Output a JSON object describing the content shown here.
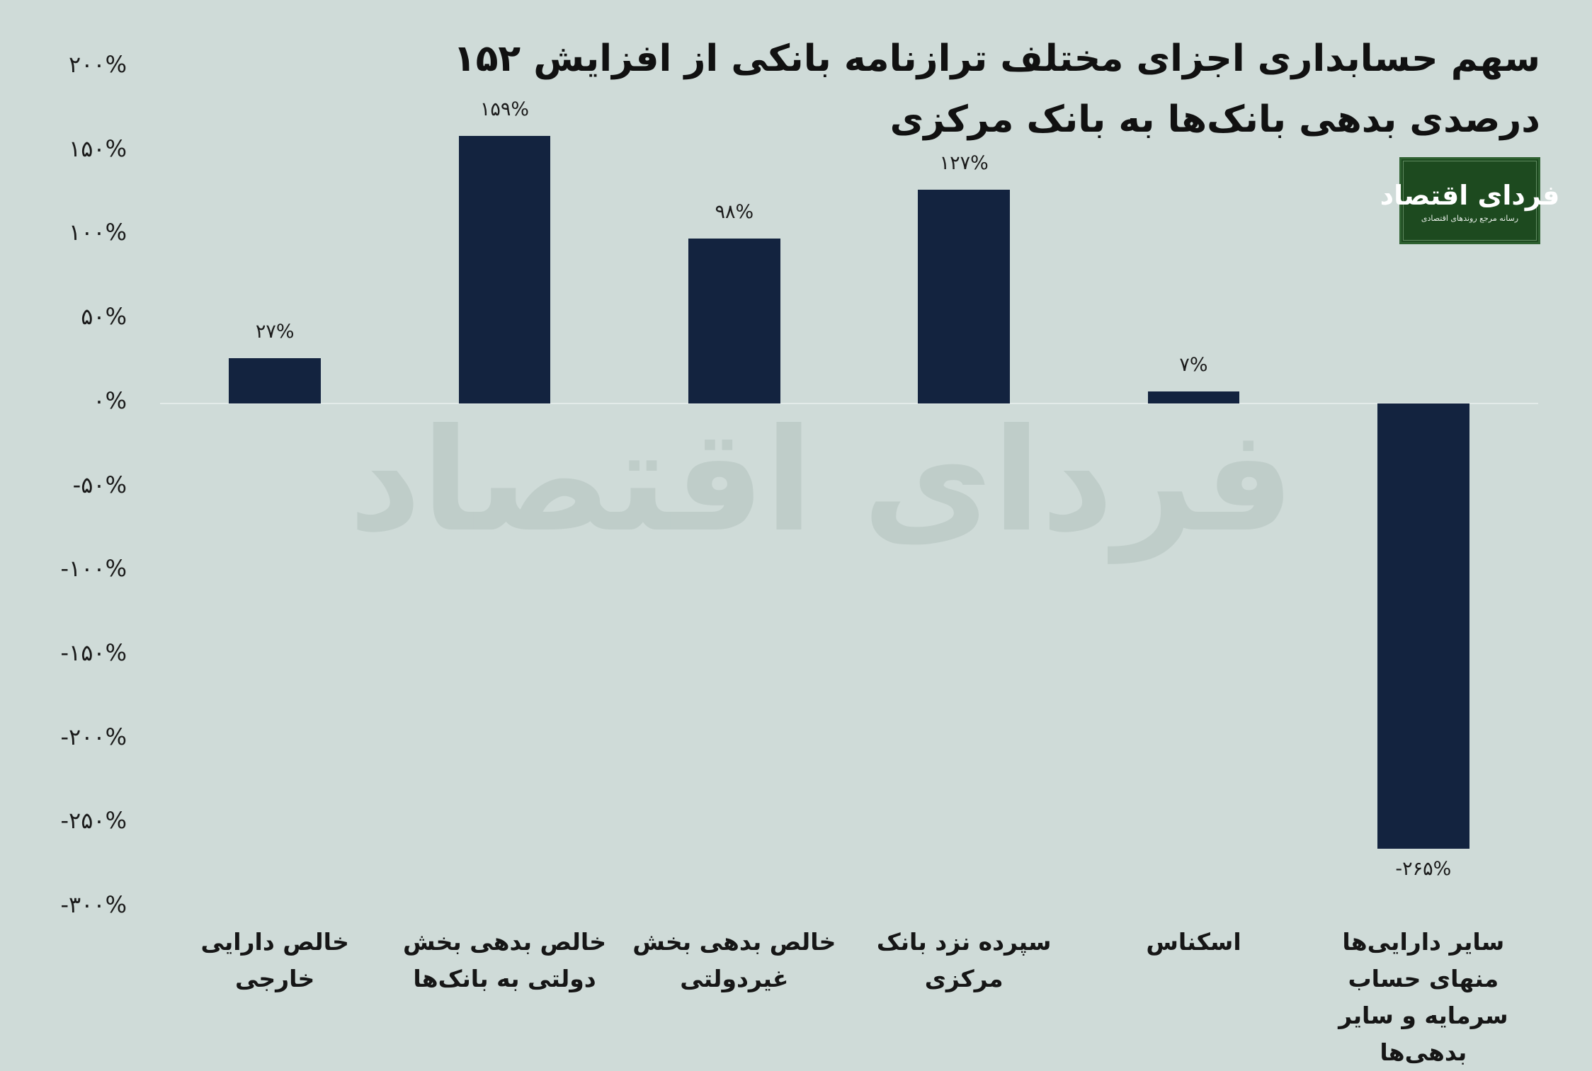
{
  "colors": {
    "background": "#cfdbd8",
    "bar": "#13233f",
    "zero_line": "#e3ebe9",
    "watermark": "#bccac6",
    "logo_background": "#1d4a1f",
    "text": "#161616"
  },
  "watermark": "فردای اقتصاد",
  "logo": {
    "name": "فردای اقتصاد",
    "tagline": "رسانه مرجع روندهای اقتصادی"
  },
  "chart_data": {
    "type": "bar",
    "title": "سهم حسابداری اجزای مختلف ترازنامه بانکی از افزایش ۱۵۲ درصدی بدهی بانک‌ها به بانک مرکزی",
    "xlabel": "",
    "ylabel": "",
    "categories": [
      "خالص دارایی خارجی",
      "خالص بدهی بخش دولتی به بانک‌ها",
      "خالص بدهی بخش غیردولتی",
      "سپرده نزد بانک مرکزی",
      "اسکناس",
      "سایر دارایی‌ها منهای حساب سرمایه و سایر بدهی‌ها"
    ],
    "values": [
      27,
      159,
      98,
      127,
      7,
      -265
    ],
    "value_labels": [
      "۲۷%",
      "۱۵۹%",
      "۹۸%",
      "۱۲۷%",
      "۷%",
      "-۲۶۵%"
    ],
    "unit": "%",
    "ylim": [
      -300,
      200
    ],
    "yticks": [
      200,
      150,
      100,
      50,
      0,
      -50,
      -100,
      -150,
      -200,
      -250,
      -300
    ],
    "ytick_labels": [
      "۲۰۰%",
      "۱۵۰%",
      "۱۰۰%",
      "۵۰%",
      "۰%",
      "-۵۰%",
      "-۱۰۰%",
      "-۱۵۰%",
      "-۲۰۰%",
      "-۲۵۰%",
      "-۳۰۰%"
    ],
    "grid": false,
    "legend": "none"
  }
}
